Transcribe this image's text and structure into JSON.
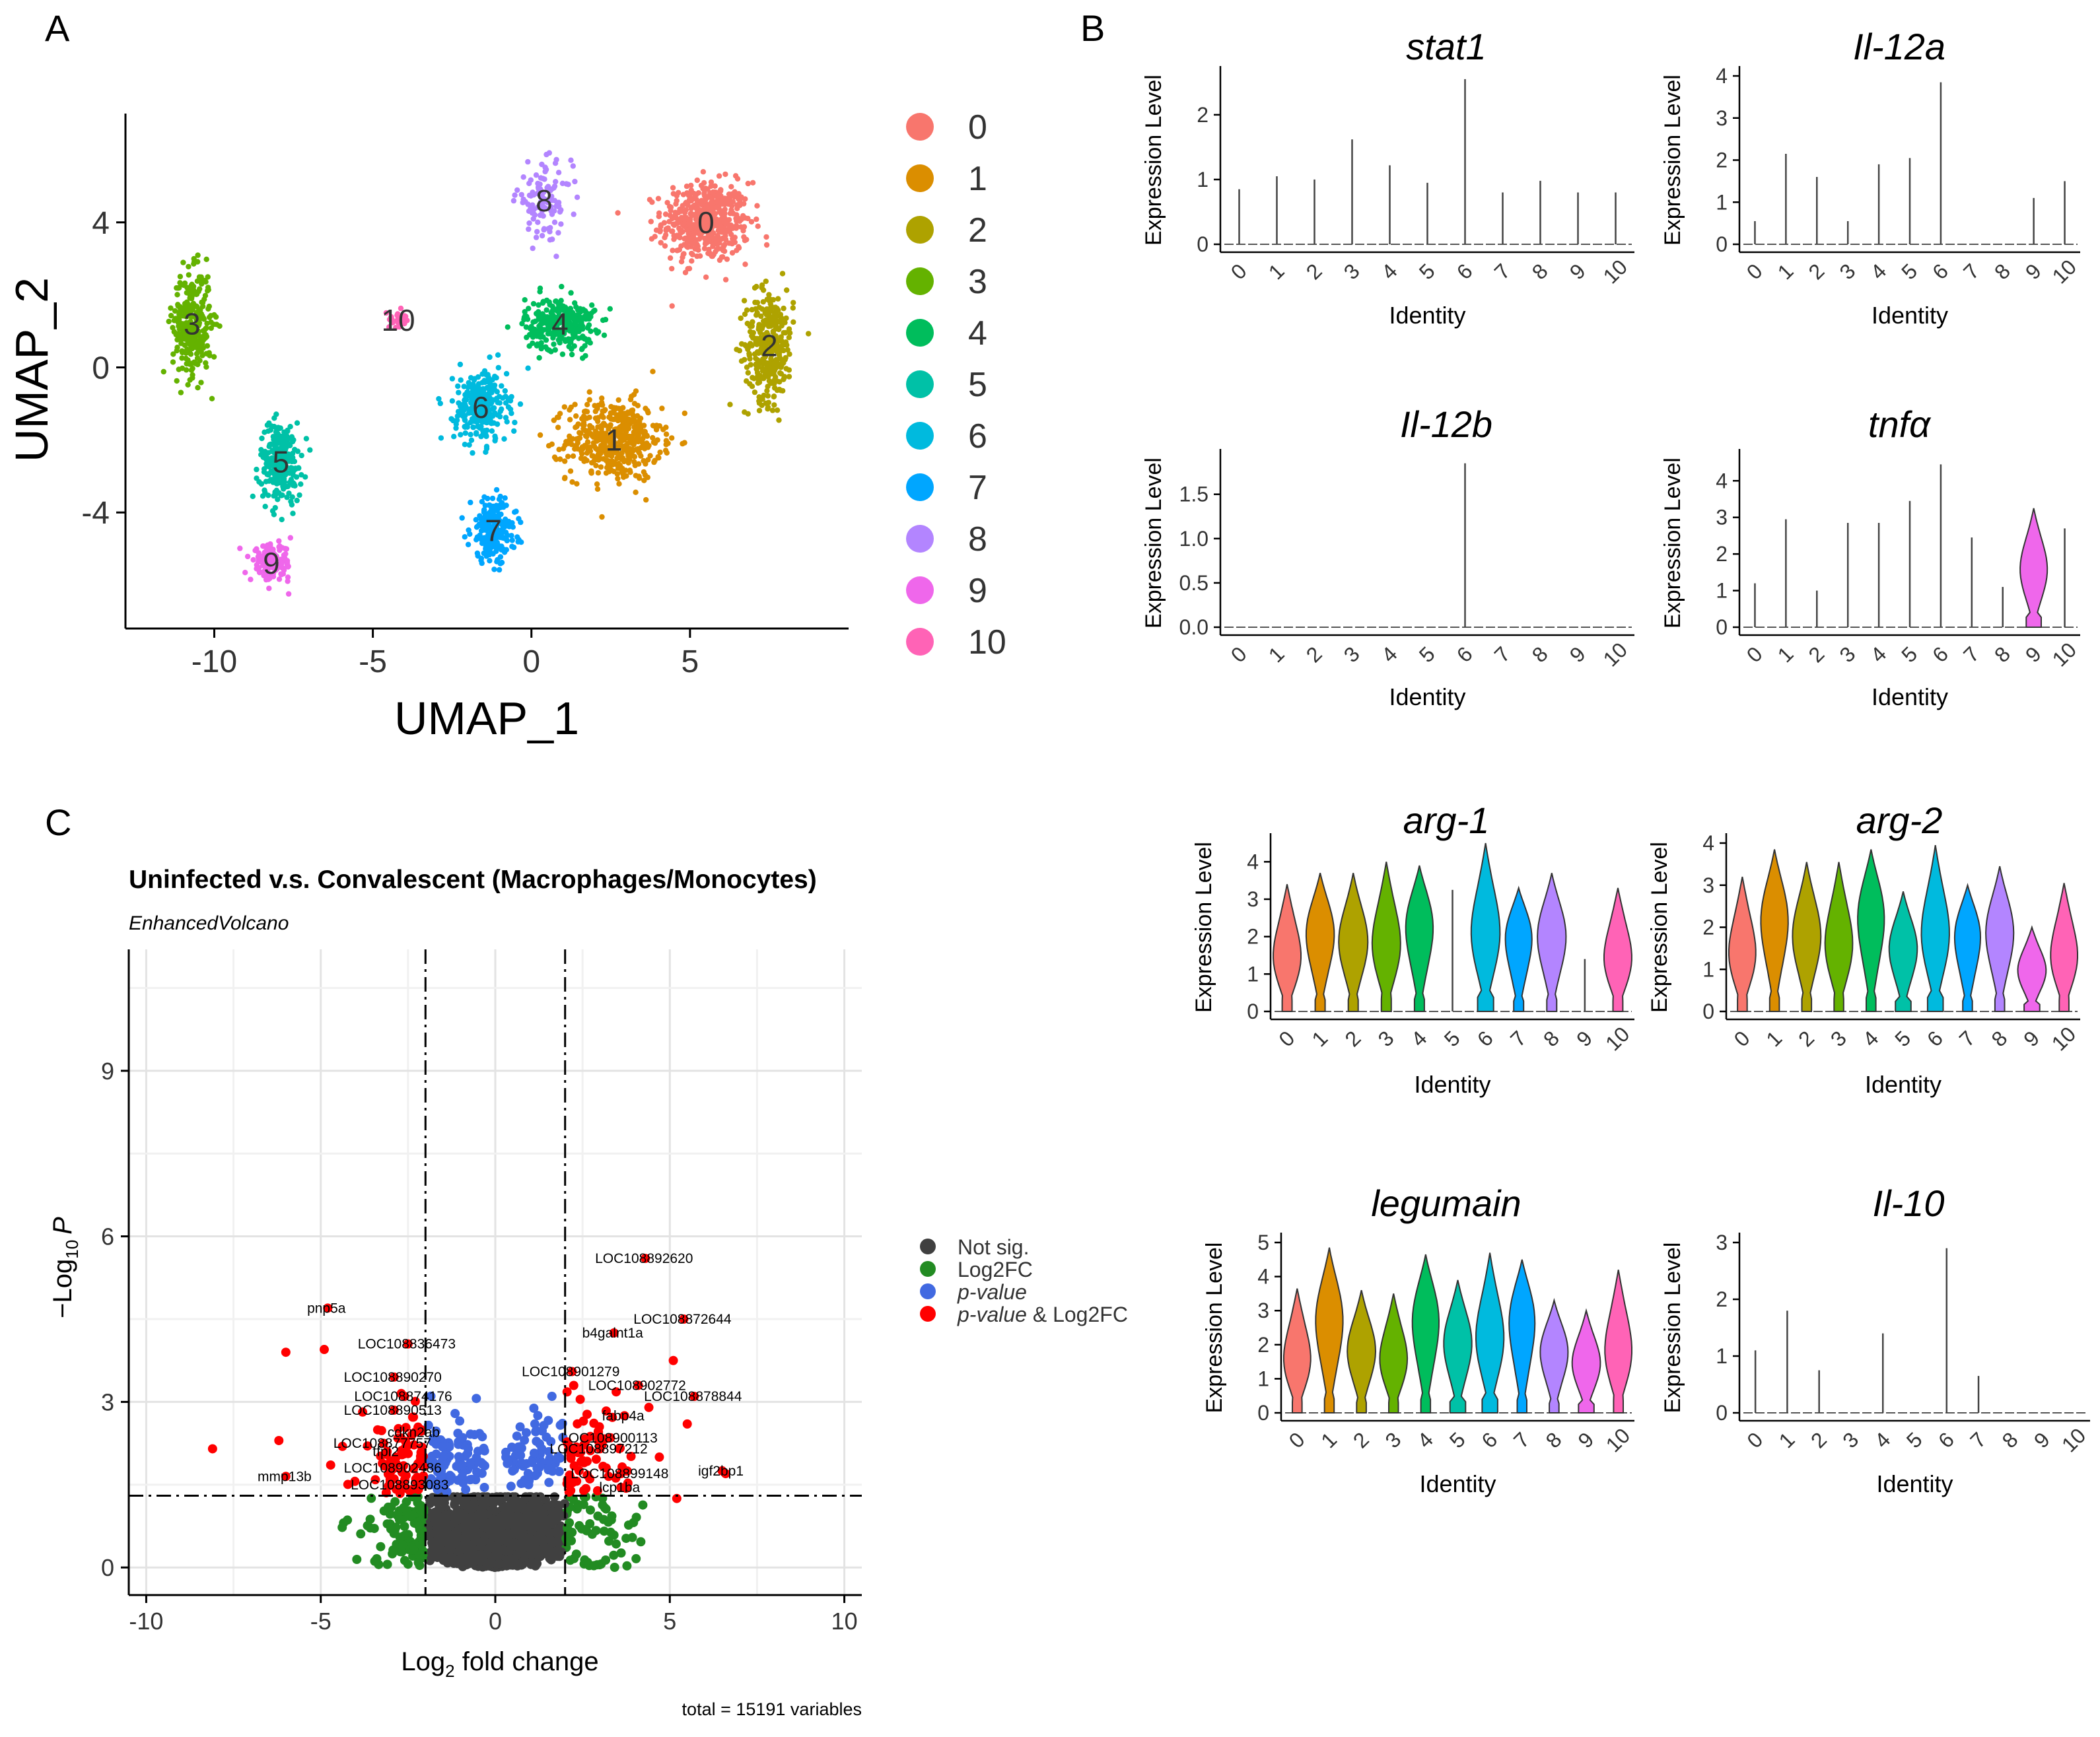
{
  "panels": {
    "a": "A",
    "b": "B",
    "c": "C"
  },
  "umap": {
    "xlabel": "UMAP_1",
    "ylabel": "UMAP_2",
    "xticks": [
      -10,
      -5,
      0,
      5
    ],
    "xtick_labels": [
      "-10",
      "-5",
      "0",
      "5"
    ],
    "yticks": [
      4,
      0,
      -4
    ],
    "ytick_labels": [
      "4",
      "0",
      "-4"
    ],
    "xlim": [
      -12.8,
      10
    ],
    "ylim": [
      -7.2,
      7
    ]
  },
  "clusters": [
    {
      "id": "0",
      "color": "#F8766D",
      "cx": 5.5,
      "cy": 4.0,
      "sx": 1.25,
      "sy": 1.0,
      "n": 520
    },
    {
      "id": "1",
      "color": "#DB8E00",
      "cx": 2.6,
      "cy": -2.0,
      "sx": 1.35,
      "sy": 1.0,
      "n": 480
    },
    {
      "id": "2",
      "color": "#AEA200",
      "cx": 7.5,
      "cy": 0.6,
      "sx": 0.7,
      "sy": 1.4,
      "n": 330
    },
    {
      "id": "3",
      "color": "#64B200",
      "cx": -10.7,
      "cy": 1.2,
      "sx": 0.55,
      "sy": 1.3,
      "n": 330
    },
    {
      "id": "4",
      "color": "#00BD5C",
      "cx": 0.9,
      "cy": 1.2,
      "sx": 1.0,
      "sy": 0.65,
      "n": 300
    },
    {
      "id": "5",
      "color": "#00C1A7",
      "cx": -7.9,
      "cy": -2.6,
      "sx": 0.6,
      "sy": 1.0,
      "n": 260
    },
    {
      "id": "6",
      "color": "#00BADE",
      "cx": -1.6,
      "cy": -1.1,
      "sx": 0.75,
      "sy": 0.9,
      "n": 270
    },
    {
      "id": "7",
      "color": "#00A6FF",
      "cx": -1.2,
      "cy": -4.5,
      "sx": 0.65,
      "sy": 0.8,
      "n": 240
    },
    {
      "id": "8",
      "color": "#B385FF",
      "cx": 0.4,
      "cy": 4.6,
      "sx": 0.8,
      "sy": 0.9,
      "n": 110
    },
    {
      "id": "9",
      "color": "#EF67EB",
      "cx": -8.2,
      "cy": -5.4,
      "sx": 0.6,
      "sy": 0.45,
      "n": 130
    },
    {
      "id": "10",
      "color": "#FF63B6",
      "cx": -4.2,
      "cy": 1.3,
      "sx": 0.4,
      "sy": 0.2,
      "n": 28
    }
  ],
  "violin_axis": {
    "xlabel": "Identity",
    "ylabel": "Expression Level",
    "categories": [
      "0",
      "1",
      "2",
      "3",
      "4",
      "5",
      "6",
      "7",
      "8",
      "9",
      "10"
    ]
  },
  "violins": [
    {
      "gene": "stat1",
      "ymax": 2.6,
      "yticks": [
        0,
        1,
        2
      ],
      "ytick_labels": [
        "0",
        "1",
        "2"
      ],
      "max": [
        0.85,
        1.05,
        1.0,
        1.62,
        1.22,
        0.95,
        2.55,
        0.8,
        0.98,
        0.8,
        0.8
      ],
      "filled": []
    },
    {
      "gene": "Il-12a",
      "ymax": 4.0,
      "yticks": [
        0,
        1,
        2,
        3,
        4
      ],
      "ytick_labels": [
        "0",
        "1",
        "2",
        "3",
        "4"
      ],
      "max": [
        0.55,
        2.15,
        1.6,
        0.55,
        1.9,
        2.05,
        3.85,
        0,
        0,
        1.1,
        1.5
      ],
      "filled": []
    },
    {
      "gene": "Il-12b",
      "ymax": 1.9,
      "yticks": [
        0,
        0.5,
        1.0,
        1.5
      ],
      "ytick_labels": [
        "0.0",
        "0.5",
        "1.0",
        "1.5"
      ],
      "max": [
        0,
        0,
        0,
        0,
        0,
        0,
        1.85,
        0,
        0,
        0,
        0
      ],
      "filled": []
    },
    {
      "gene": "tnfα",
      "ymax": 4.6,
      "yticks": [
        0,
        1,
        2,
        3,
        4
      ],
      "ytick_labels": [
        "0",
        "1",
        "2",
        "3",
        "4"
      ],
      "max": [
        1.2,
        2.95,
        1.0,
        2.85,
        2.85,
        3.45,
        4.45,
        2.45,
        1.1,
        3.25,
        2.7
      ],
      "filled": [
        "9"
      ]
    },
    {
      "gene": "arg-1",
      "ymax": 4.5,
      "yticks": [
        0,
        1,
        2,
        3,
        4
      ],
      "ytick_labels": [
        "0",
        "1",
        "2",
        "3",
        "4"
      ],
      "max": [
        3.4,
        3.7,
        3.7,
        4.0,
        3.9,
        3.25,
        4.5,
        3.3,
        3.7,
        1.4,
        3.3
      ],
      "filled": [
        "0",
        "1",
        "2",
        "3",
        "4",
        "6",
        "7",
        "8",
        "10"
      ]
    },
    {
      "gene": "arg-2",
      "ymax": 4.0,
      "yticks": [
        0,
        1,
        2,
        3,
        4
      ],
      "ytick_labels": [
        "0",
        "1",
        "2",
        "3",
        "4"
      ],
      "max": [
        3.2,
        3.85,
        3.55,
        3.55,
        3.85,
        2.85,
        3.95,
        3.0,
        3.45,
        2.0,
        3.05
      ],
      "filled": [
        "0",
        "1",
        "2",
        "3",
        "4",
        "5",
        "6",
        "7",
        "8",
        "9",
        "10"
      ]
    },
    {
      "gene": "legumain",
      "ymax": 5.0,
      "yticks": [
        0,
        1,
        2,
        3,
        4,
        5
      ],
      "ytick_labels": [
        "0",
        "1",
        "2",
        "3",
        "4",
        "5"
      ],
      "max": [
        3.65,
        4.85,
        3.6,
        3.5,
        4.65,
        3.9,
        4.7,
        4.5,
        3.3,
        3.0,
        4.2
      ],
      "filled": [
        "0",
        "1",
        "2",
        "3",
        "4",
        "5",
        "6",
        "7",
        "8",
        "9",
        "10"
      ]
    },
    {
      "gene": "Il-10",
      "ymax": 3.0,
      "yticks": [
        0,
        1,
        2,
        3
      ],
      "ytick_labels": [
        "0",
        "1",
        "2",
        "3"
      ],
      "max": [
        1.1,
        1.8,
        0.75,
        0,
        1.4,
        0,
        2.9,
        0.65,
        0,
        0,
        0
      ],
      "filled": []
    }
  ],
  "volcano": {
    "title": "Uninfected v.s. Convalescent (Macrophages/Monocytes)",
    "subtitle": "EnhancedVolcano",
    "xlabel_main": "Log",
    "xlabel_sub": "2",
    "xlabel_rest": " fold change",
    "ylabel_pre": "−Log",
    "ylabel_sub": "10",
    "ylabel_post": "P",
    "xticks": [
      -10,
      -5,
      0,
      5,
      10
    ],
    "xtick_labels": [
      "-10",
      "-5",
      "0",
      "5",
      "10"
    ],
    "yticks": [
      0,
      3,
      6,
      9
    ],
    "ytick_labels": [
      "0",
      "3",
      "6",
      "9"
    ],
    "xlim": [
      -10.5,
      10.5
    ],
    "ylim": [
      -0.5,
      11.2
    ],
    "fc_cutoff": 2,
    "p_cutoff": 1.3,
    "caption": "total = 15191 variables",
    "legend": [
      {
        "label": "Not sig.",
        "color": "#404040",
        "italic": false
      },
      {
        "label": "Log2FC",
        "color": "#228B22",
        "italic": false
      },
      {
        "label": "p-value",
        "color": "#4169E1",
        "italic": true
      },
      {
        "label": "p-value & Log2FC",
        "color": "#FF0000",
        "italic": true
      }
    ],
    "labeled_points": [
      {
        "label": "LOC108892620",
        "x": 4.3,
        "y": 5.6
      },
      {
        "label": "pnp5a",
        "x": -4.8,
        "y": 4.7
      },
      {
        "label": "LOC108872644",
        "x": 5.4,
        "y": 4.5
      },
      {
        "label": "b4galnt1a",
        "x": 3.4,
        "y": 4.25
      },
      {
        "label": "LOC108836473",
        "x": -2.5,
        "y": 4.05
      },
      {
        "label": "LOC108901279",
        "x": 2.2,
        "y": 3.55
      },
      {
        "label": "LOC108890270",
        "x": -2.9,
        "y": 3.45
      },
      {
        "label": "LOC108902772",
        "x": 4.1,
        "y": 3.3
      },
      {
        "label": "LOC108874176",
        "x": -2.6,
        "y": 3.1
      },
      {
        "label": "LOC108878844",
        "x": 5.7,
        "y": 3.1
      },
      {
        "label": "LOC108890513",
        "x": -2.9,
        "y": 2.85
      },
      {
        "label": "fabp4a",
        "x": 3.7,
        "y": 2.75
      },
      {
        "label": "cdkn2ab",
        "x": -2.3,
        "y": 2.45
      },
      {
        "label": "LOC108900113",
        "x": 3.3,
        "y": 2.35
      },
      {
        "label": "LOC108877757",
        "x": -3.2,
        "y": 2.25
      },
      {
        "label": "LOC108897212",
        "x": 3.0,
        "y": 2.15
      },
      {
        "label": "mmp13b",
        "x": -6.0,
        "y": 1.65
      },
      {
        "label": "LOC108899148",
        "x": 3.6,
        "y": 1.7
      },
      {
        "label": "igf2bp1",
        "x": 6.5,
        "y": 1.75
      },
      {
        "label": "LOC108893083",
        "x": -2.7,
        "y": 1.5
      }
    ],
    "extra_labels": [
      {
        "label": "tfpi2",
        "x": -3.1,
        "y": 2.1
      },
      {
        "label": "LOC108902486",
        "x": -2.9,
        "y": 1.8
      },
      {
        "label": "lcp1ba",
        "x": 3.6,
        "y": 1.45
      }
    ]
  }
}
